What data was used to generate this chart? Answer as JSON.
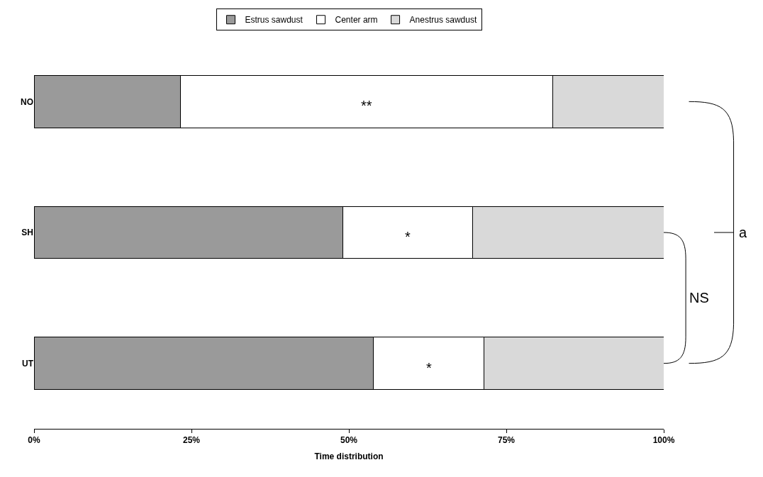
{
  "chart_data": {
    "type": "bar",
    "orientation": "horizontal",
    "stacked": true,
    "xlabel": "Time distribution",
    "categories": [
      "NO",
      "SH",
      "UT"
    ],
    "series": [
      {
        "name": "Estrus sawdust",
        "color": "#9a9a9a",
        "values": [
          23.2,
          49.0,
          53.9
        ]
      },
      {
        "name": "Center arm",
        "color": "#ffffff",
        "values": [
          59.2,
          20.7,
          17.6
        ]
      },
      {
        "name": "Anestrus sawdust",
        "color": "#d9d9d9",
        "values": [
          17.6,
          30.3,
          28.5
        ]
      }
    ],
    "xlim": [
      0,
      100
    ],
    "xticks": [
      {
        "value": 0,
        "label": "0%"
      },
      {
        "value": 25,
        "label": "25%"
      },
      {
        "value": 50,
        "label": "50%"
      },
      {
        "value": 75,
        "label": "75%"
      },
      {
        "value": 100,
        "label": "100%"
      }
    ],
    "annotations": [
      "**",
      "*",
      "*",
      "a",
      "NS"
    ],
    "legend": "top"
  }
}
